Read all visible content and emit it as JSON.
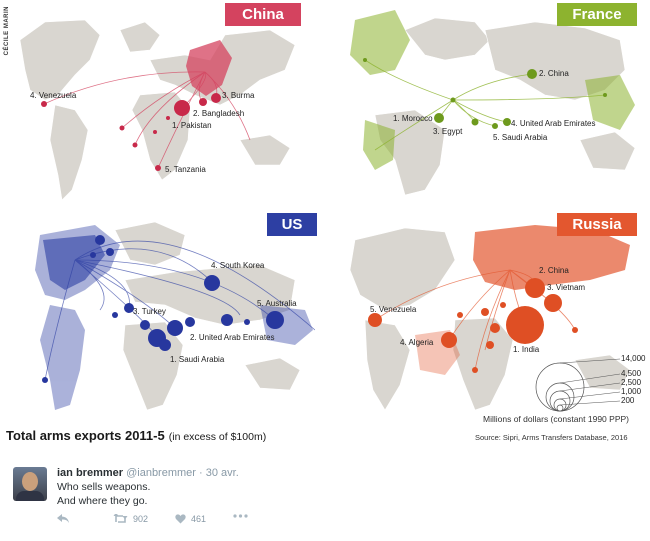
{
  "credit": "CÉCILE MARIN",
  "panels": {
    "china": {
      "name": "China",
      "color": "#d4435f",
      "dot_color": "#c8294a",
      "labels": [
        "4. Venezuela",
        "3. Burma",
        "2. Bangladesh",
        "1. Pakistan",
        "5. Tanzania"
      ]
    },
    "france": {
      "name": "France",
      "color": "#8db32f",
      "dot_color": "#6e9a1d",
      "labels": [
        "2. China",
        "1. Morocco",
        "4. United Arab Emirates",
        "3. Egypt",
        "5. Saudi Arabia"
      ]
    },
    "us": {
      "name": "US",
      "color": "#2d3fa3",
      "dot_color": "#27379e",
      "labels": [
        "4. South Korea",
        "5. Australia",
        "3. Turkey",
        "2. United Arab Emirates",
        "1. Saudi Arabia"
      ]
    },
    "russia": {
      "name": "Russia",
      "color": "#e3572f",
      "dot_color": "#df4f24",
      "labels": [
        "2. China",
        "3. Vietnam",
        "5. Venezuela",
        "4. Algeria",
        "1. India"
      ]
    }
  },
  "legend": {
    "values": [
      "14,000",
      "4,500",
      "2,500",
      "1,000",
      "200"
    ],
    "caption": "Millions of dollars (constant 1990 PPP)"
  },
  "source": "Source: Sipri, Arms Transfers Database, 2016",
  "title": {
    "main": "Total arms exports 2011-5",
    "sub": "(in excess of $100m)"
  },
  "tweet": {
    "name": "ian bremmer",
    "handle": "@ianbremmer",
    "dot": "·",
    "date": "30 avr.",
    "line1": "Who sells weapons.",
    "line2": "And where they go.",
    "retweets": "902",
    "likes": "461"
  }
}
